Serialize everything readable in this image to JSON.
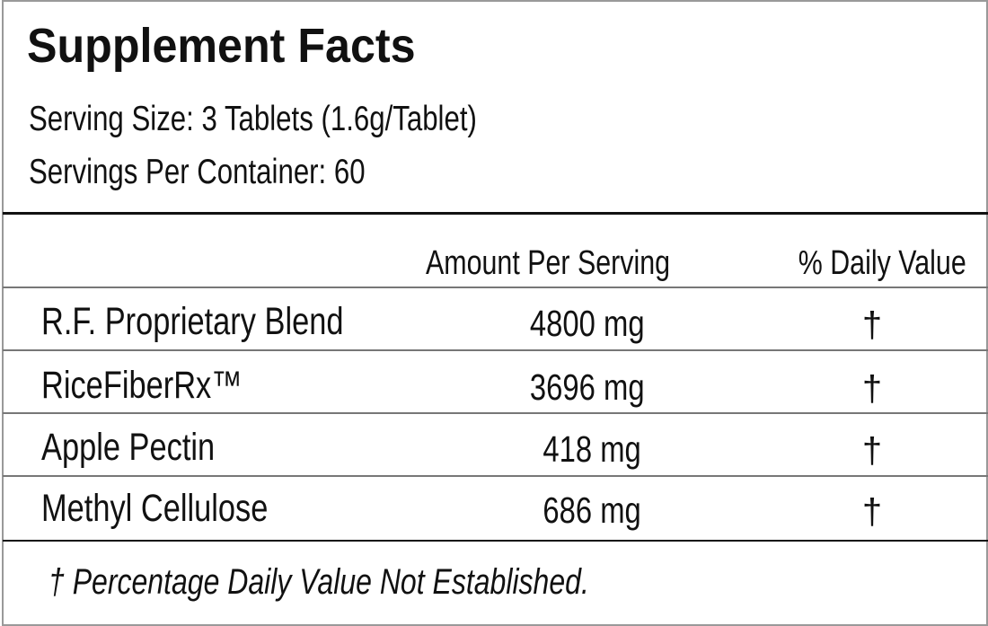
{
  "title": "Supplement Facts",
  "serving_size": "Serving Size: 3 Tablets (1.6g/Tablet)",
  "servings_per_container": "Servings Per Container: 60",
  "headers": {
    "amount": "Amount Per Serving",
    "daily_value": "% Daily Value"
  },
  "rows": [
    {
      "name": "R.F. Proprietary Blend",
      "amount": "4800 mg",
      "dv": "†"
    },
    {
      "name": "RiceFiberRx™",
      "amount": "3696 mg",
      "dv": "†"
    },
    {
      "name": "Apple Pectin",
      "amount": "418 mg",
      "dv": "†"
    },
    {
      "name": "Methyl Cellulose",
      "amount": "686 mg",
      "dv": "†"
    }
  ],
  "footnote": "† Percentage Daily Value Not Established."
}
